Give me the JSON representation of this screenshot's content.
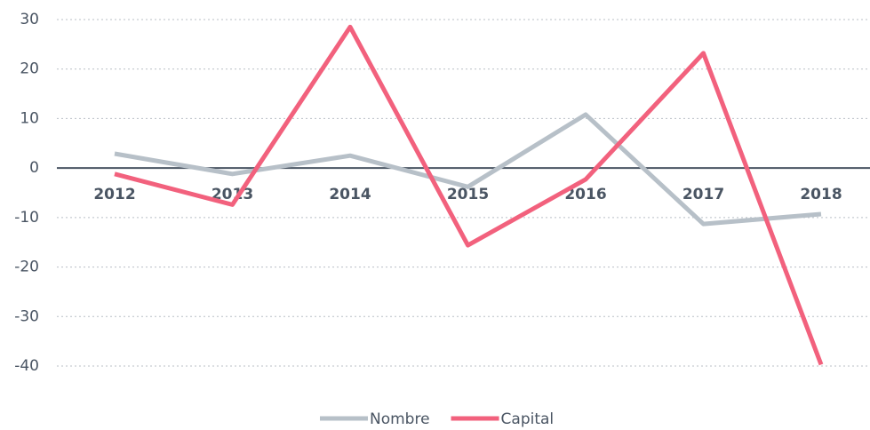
{
  "chart_data": {
    "type": "line",
    "categories": [
      "2012",
      "2013",
      "2014",
      "2015",
      "2016",
      "2017",
      "2018"
    ],
    "series": [
      {
        "name": "Nombre",
        "color": "#b7c0c8",
        "values": [
          2.9,
          -1.2,
          2.5,
          -3.8,
          10.8,
          -11.3,
          -9.3
        ]
      },
      {
        "name": "Capital",
        "color": "#f2617d",
        "values": [
          -1.2,
          -7.4,
          28.5,
          -15.6,
          -2.3,
          23.2,
          -39.7
        ]
      }
    ],
    "ylim": [
      -40,
      30
    ],
    "yticks": [
      -40,
      -30,
      -20,
      -10,
      0,
      10,
      20,
      30
    ],
    "grid": true,
    "legend": "bottom"
  }
}
